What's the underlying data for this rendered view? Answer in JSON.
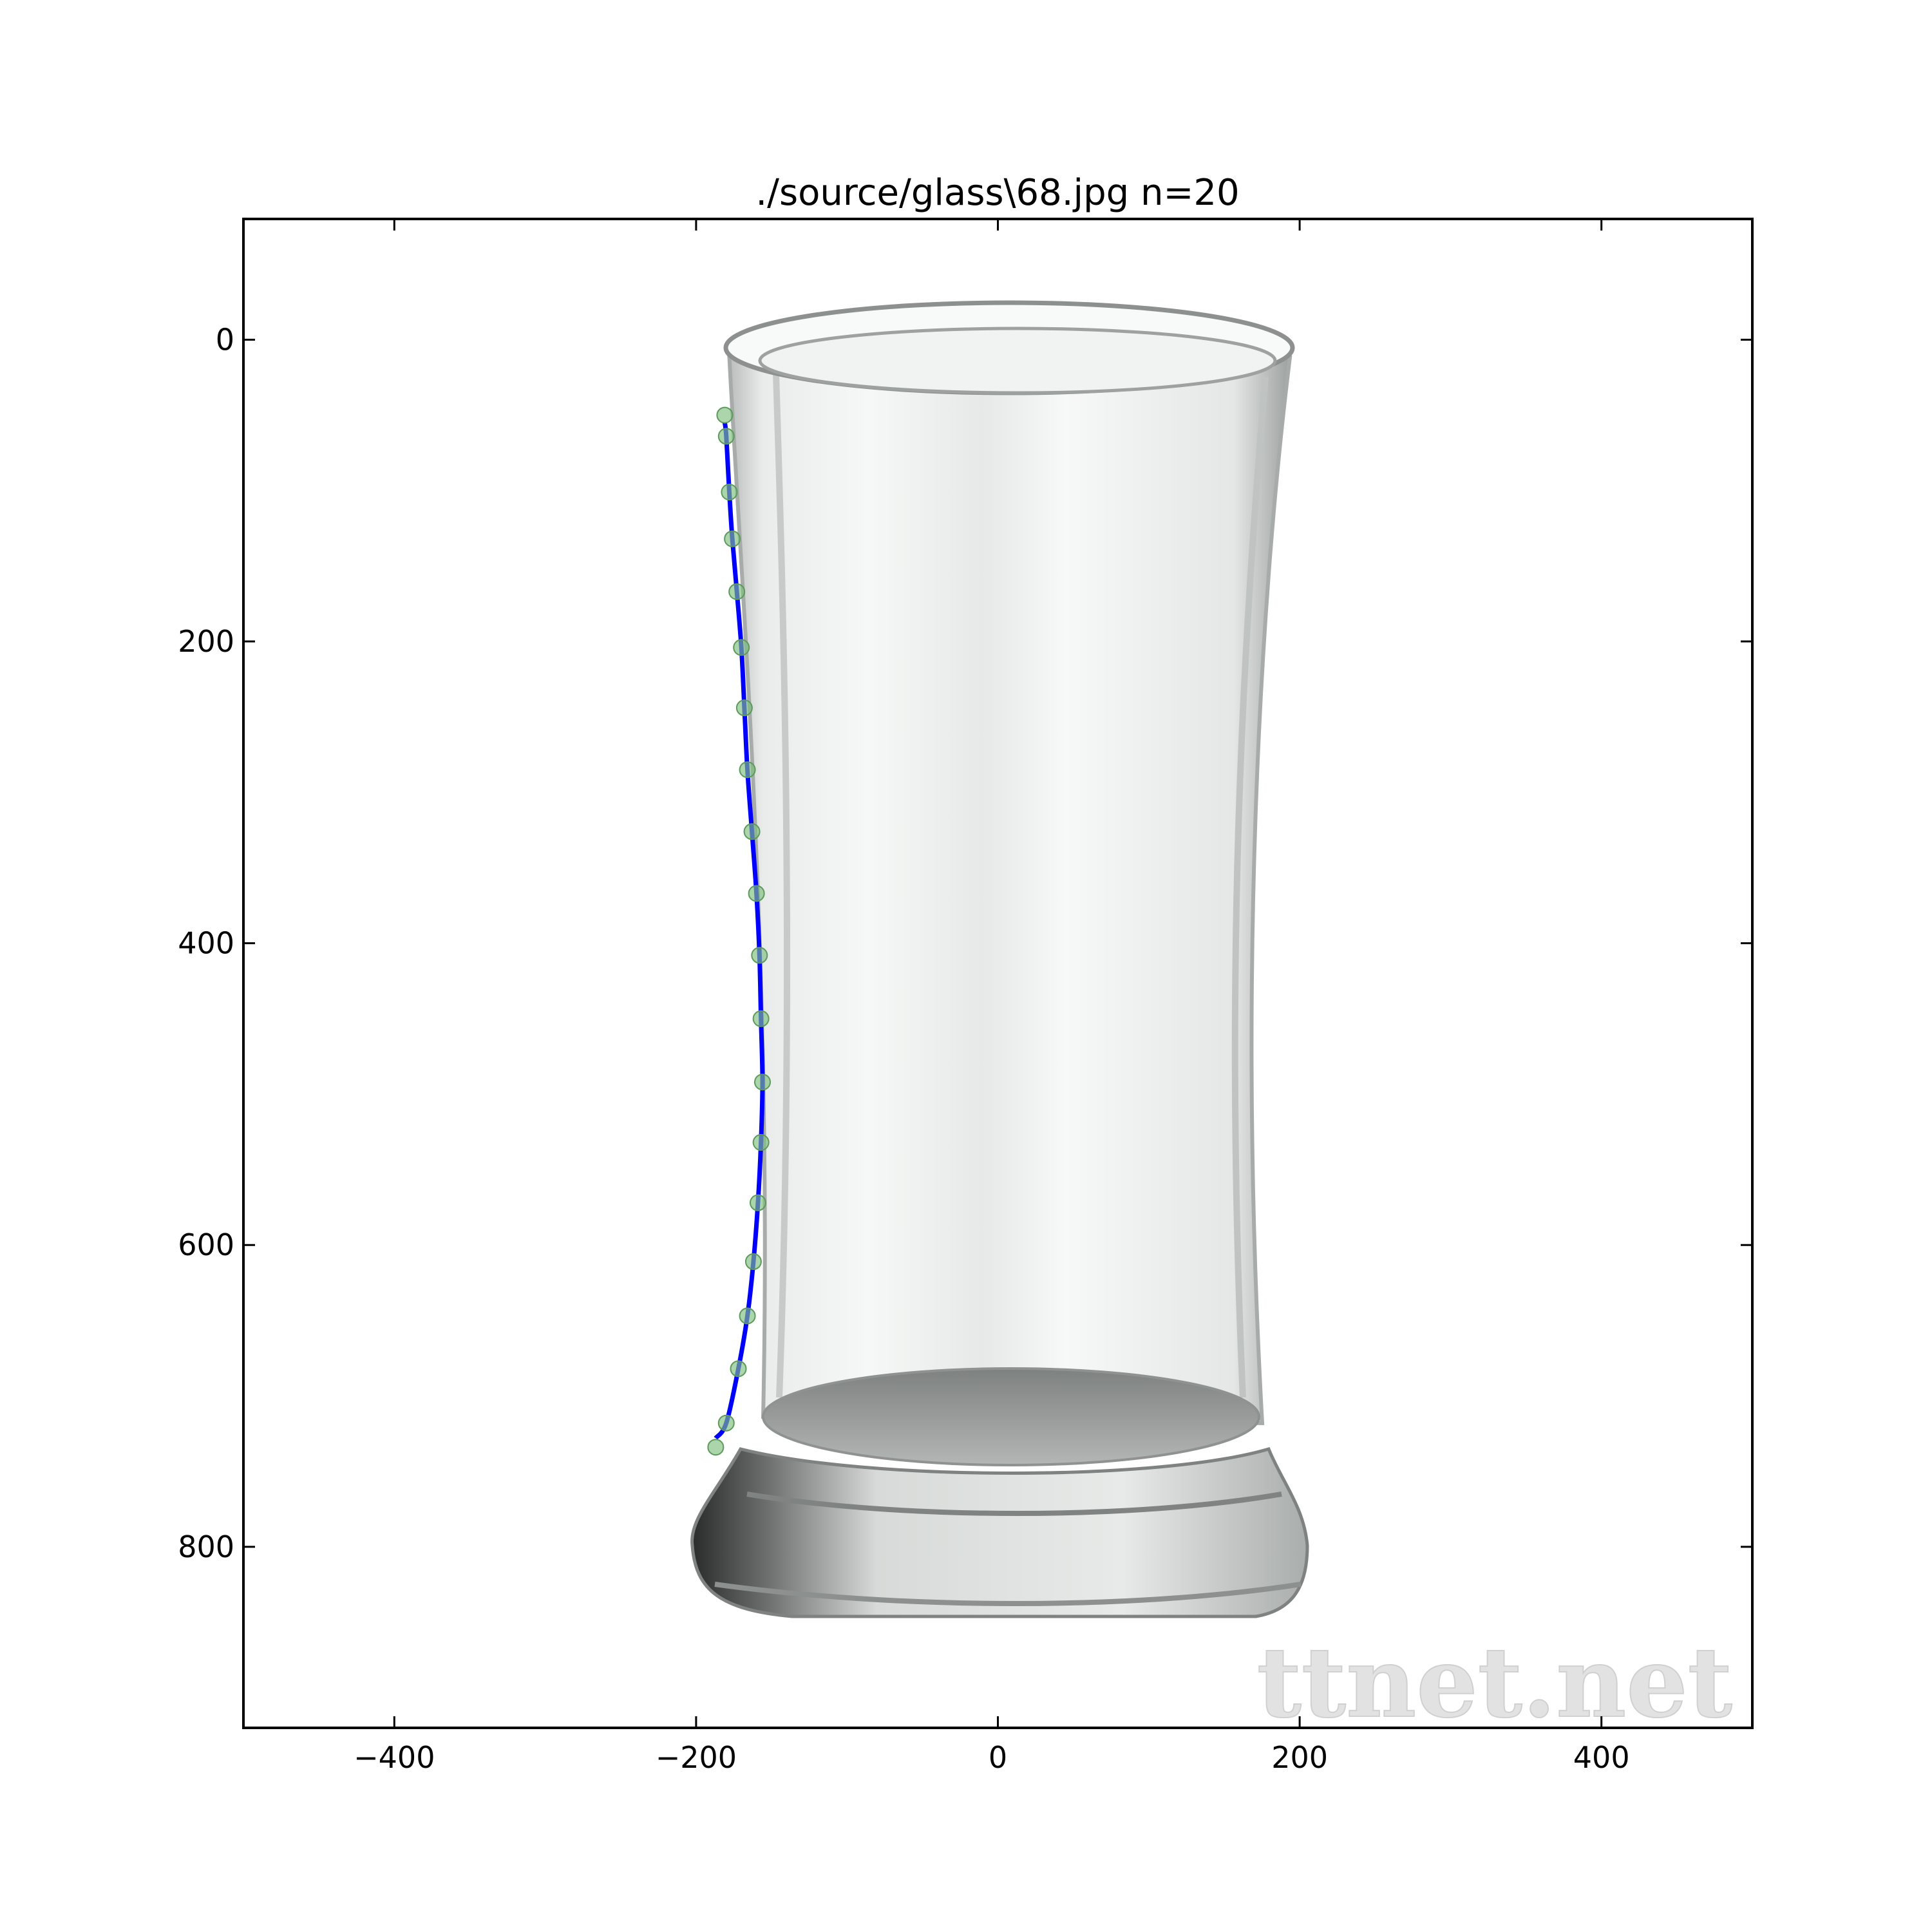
{
  "chart_data": {
    "type": "scatter",
    "title": "./source/glass\\68.jpg n=20",
    "xlabel": "",
    "ylabel": "",
    "xlim": [
      -500,
      500
    ],
    "ylim": [
      920,
      -80
    ],
    "y_inverted": true,
    "grid": false,
    "legend": "none",
    "xticks": [
      -400,
      -200,
      0,
      200,
      400
    ],
    "yticks": [
      0,
      200,
      400,
      600,
      800
    ],
    "xtick_labels": [
      "−400",
      "−200",
      "0",
      "200",
      "400"
    ],
    "ytick_labels": [
      "0",
      "200",
      "400",
      "600",
      "800"
    ],
    "background_image": "photo of a clear drinking glass (tall tumbler with thick base)",
    "watermark": "ttnet.net",
    "series": [
      {
        "kind": "points",
        "color": "#7fbf7f",
        "x": [
          -181,
          -180,
          -178,
          -176,
          -173,
          -170,
          -168,
          -166,
          -163,
          -160,
          -158,
          -157,
          -156,
          -157,
          -159,
          -162,
          -166,
          -172,
          -180,
          -187
        ],
        "y": [
          50,
          64,
          101,
          132,
          167,
          204,
          244,
          285,
          326,
          367,
          408,
          450,
          492,
          532,
          572,
          611,
          647,
          682,
          718,
          734
        ]
      },
      {
        "kind": "curve",
        "color": "#0000ff",
        "x": [
          -181,
          -180,
          -178,
          -176,
          -173,
          -170,
          -168,
          -166,
          -163,
          -160,
          -158,
          -157,
          -156,
          -157,
          -159,
          -162,
          -166,
          -172,
          -180,
          -187
        ],
        "y": [
          55,
          64,
          101,
          132,
          167,
          204,
          244,
          285,
          326,
          367,
          408,
          450,
          492,
          532,
          572,
          611,
          647,
          682,
          718,
          728
        ]
      }
    ]
  }
}
